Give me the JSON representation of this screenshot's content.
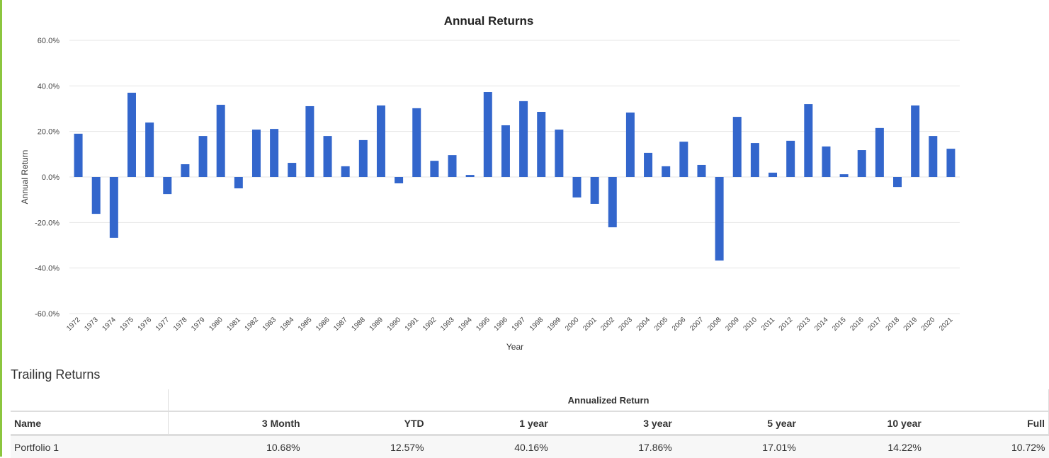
{
  "chart_data": {
    "type": "bar",
    "title": "Annual Returns",
    "xlabel": "Year",
    "ylabel": "Annual Return",
    "ylim": [
      -60,
      60
    ],
    "yticks": [
      "60.0%",
      "40.0%",
      "20.0%",
      "0.0%",
      "-20.0%",
      "-40.0%",
      "-60.0%"
    ],
    "ytick_values": [
      60,
      40,
      20,
      0,
      -20,
      -40,
      -60
    ],
    "grid": true,
    "color": "#3366cc",
    "categories": [
      "1972",
      "1973",
      "1974",
      "1975",
      "1976",
      "1977",
      "1978",
      "1979",
      "1980",
      "1981",
      "1982",
      "1983",
      "1984",
      "1985",
      "1986",
      "1987",
      "1988",
      "1989",
      "1990",
      "1991",
      "1992",
      "1993",
      "1994",
      "1995",
      "1996",
      "1997",
      "1998",
      "1999",
      "2000",
      "2001",
      "2002",
      "2003",
      "2004",
      "2005",
      "2006",
      "2007",
      "2008",
      "2009",
      "2010",
      "2011",
      "2012",
      "2013",
      "2014",
      "2015",
      "2016",
      "2017",
      "2018",
      "2019",
      "2020",
      "2021"
    ],
    "values": [
      19.0,
      -16.2,
      -26.7,
      37.0,
      23.9,
      -7.5,
      5.6,
      18.0,
      31.7,
      -5.0,
      20.8,
      21.1,
      6.2,
      31.1,
      18.0,
      4.7,
      16.2,
      31.4,
      -2.8,
      30.2,
      7.1,
      9.6,
      0.9,
      37.3,
      22.7,
      33.3,
      28.6,
      20.8,
      -9.0,
      -11.8,
      -22.1,
      28.3,
      10.6,
      4.7,
      15.5,
      5.3,
      -36.7,
      26.4,
      14.9,
      1.9,
      15.9,
      32.0,
      13.4,
      1.2,
      11.8,
      21.5,
      -4.4,
      31.4,
      18.0,
      12.4
    ]
  },
  "trailing": {
    "title": "Trailing Returns",
    "group_header": "Annualized Return",
    "columns": [
      "Name",
      "3 Month",
      "YTD",
      "1 year",
      "3 year",
      "5 year",
      "10 year",
      "Full"
    ],
    "rows": [
      {
        "name": "Portfolio 1",
        "values": [
          "10.68%",
          "12.57%",
          "40.16%",
          "17.86%",
          "17.01%",
          "14.22%",
          "10.72%"
        ]
      }
    ]
  }
}
